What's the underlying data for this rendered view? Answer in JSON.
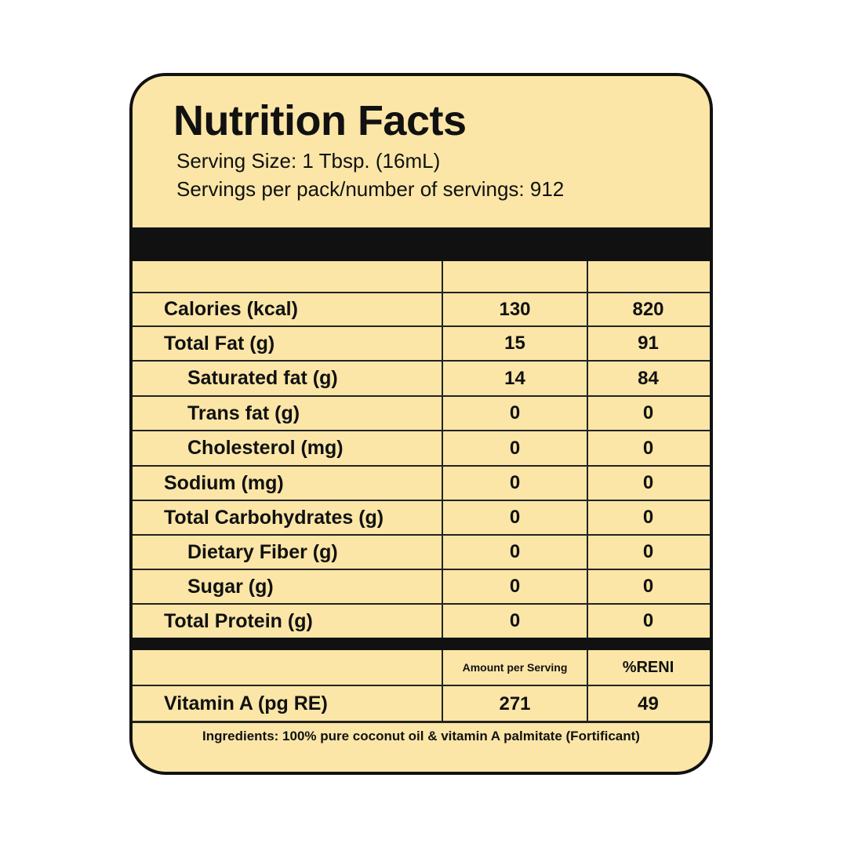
{
  "title": "Nutrition Facts",
  "serving_size": "Serving Size: 1 Tbsp. (16mL)",
  "servings_per_pack": "Servings per pack/number of servings: 912",
  "nutrients": [
    {
      "name": "Calories (kcal)",
      "per_serving": "130",
      "per_100": "820",
      "indent": false
    },
    {
      "name": "Total Fat (g)",
      "per_serving": "15",
      "per_100": "91",
      "indent": false
    },
    {
      "name": "Saturated fat (g)",
      "per_serving": "14",
      "per_100": "84",
      "indent": true
    },
    {
      "name": "Trans fat (g)",
      "per_serving": "0",
      "per_100": "0",
      "indent": true
    },
    {
      "name": "Cholesterol (mg)",
      "per_serving": "0",
      "per_100": "0",
      "indent": true
    },
    {
      "name": "Sodium (mg)",
      "per_serving": "0",
      "per_100": "0",
      "indent": false
    },
    {
      "name": "Total Carbohydrates (g)",
      "per_serving": "0",
      "per_100": "0",
      "indent": false
    },
    {
      "name": "Dietary Fiber (g)",
      "per_serving": "0",
      "per_100": "0",
      "indent": true
    },
    {
      "name": "Sugar (g)",
      "per_serving": "0",
      "per_100": "0",
      "indent": true
    },
    {
      "name": "Total Protein (g)",
      "per_serving": "0",
      "per_100": "0",
      "indent": false
    }
  ],
  "vitamin_header": {
    "amount": "Amount per Serving",
    "reni": "%RENI"
  },
  "vitamin": {
    "name": "Vitamin A (pg RE)",
    "amount": "271",
    "reni": "49"
  },
  "ingredients": "Ingredients: 100% pure coconut oil & vitamin A palmitate (Fortificant)",
  "colors": {
    "panel": "#fbe6a7",
    "ink": "#111111"
  }
}
